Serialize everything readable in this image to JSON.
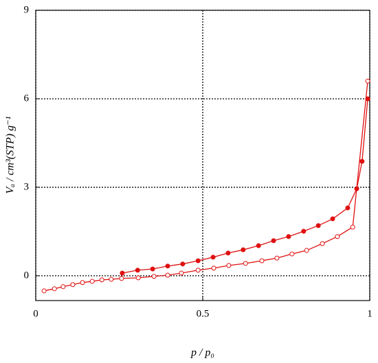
{
  "chart_data": {
    "type": "line",
    "x_label": "p / p₀",
    "y_label": "Vₐ / cm³(STP) g⁻¹",
    "xlim": [
      0,
      1
    ],
    "ylim": [
      -0.84,
      9
    ],
    "xticks": [
      0,
      0.5,
      1
    ],
    "yticks": [
      0,
      3,
      6,
      9
    ],
    "grid": true,
    "series": [
      {
        "color": "#e01010",
        "filled": false,
        "x": [
          0.025,
          0.056,
          0.082,
          0.111,
          0.14,
          0.169,
          0.198,
          0.226,
          0.257,
          0.307,
          0.354,
          0.395,
          0.436,
          0.486,
          0.533,
          0.578,
          0.628,
          0.677,
          0.722,
          0.767,
          0.811,
          0.858,
          0.903,
          0.949,
          0.994
        ],
        "values": [
          -0.51,
          -0.44,
          -0.37,
          -0.3,
          -0.23,
          -0.19,
          -0.14,
          -0.12,
          -0.09,
          -0.07,
          -0.02,
          0.02,
          0.09,
          0.19,
          0.26,
          0.35,
          0.42,
          0.51,
          0.6,
          0.74,
          0.86,
          1.09,
          1.33,
          1.65,
          6.6
        ]
      },
      {
        "color": "#e01010",
        "filled": true,
        "x": [
          0.994,
          0.977,
          0.961,
          0.934,
          0.889,
          0.846,
          0.802,
          0.757,
          0.712,
          0.667,
          0.621,
          0.576,
          0.531,
          0.486,
          0.44,
          0.395,
          0.35,
          0.305,
          0.259
        ],
        "values": [
          6.0,
          3.88,
          2.95,
          2.3,
          1.93,
          1.7,
          1.51,
          1.33,
          1.19,
          1.02,
          0.88,
          0.77,
          0.63,
          0.51,
          0.4,
          0.33,
          0.23,
          0.19,
          0.09
        ]
      }
    ]
  }
}
